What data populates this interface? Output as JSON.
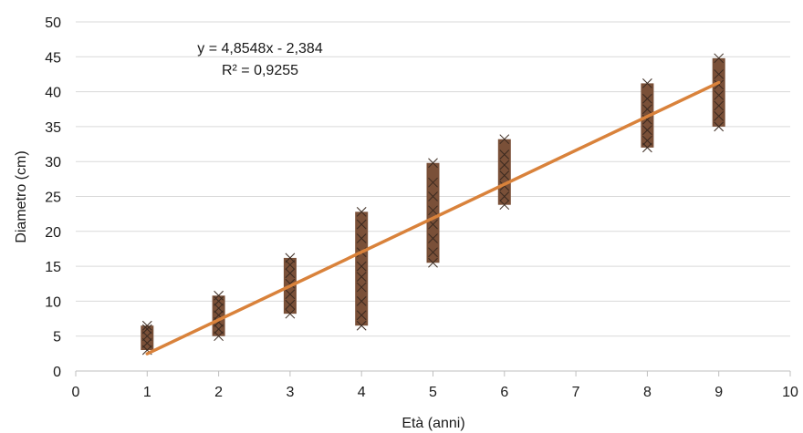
{
  "chart_data": {
    "type": "scatter",
    "title": "",
    "xlabel": "Età (anni)",
    "ylabel": "Diametro (cm)",
    "xlim": [
      0,
      10
    ],
    "ylim": [
      0,
      50
    ],
    "x_ticks": [
      "0",
      "1",
      "2",
      "3",
      "4",
      "5",
      "6",
      "7",
      "8",
      "9",
      "10"
    ],
    "y_ticks": [
      "0",
      "5",
      "10",
      "15",
      "20",
      "25",
      "30",
      "35",
      "40",
      "45",
      "50"
    ],
    "grid": "horizontal",
    "legend": "none",
    "series": [
      {
        "color": "#7a5038",
        "marker": "x",
        "points": [
          {
            "x": 1,
            "y": 3
          },
          {
            "x": 1,
            "y": 4
          },
          {
            "x": 1,
            "y": 5
          },
          {
            "x": 1,
            "y": 6
          },
          {
            "x": 1,
            "y": 6.5
          },
          {
            "x": 2,
            "y": 5
          },
          {
            "x": 2,
            "y": 6
          },
          {
            "x": 2,
            "y": 7
          },
          {
            "x": 2,
            "y": 8
          },
          {
            "x": 2,
            "y": 9
          },
          {
            "x": 2,
            "y": 10
          },
          {
            "x": 2,
            "y": 10.8
          },
          {
            "x": 3,
            "y": 8.2
          },
          {
            "x": 3,
            "y": 9.5
          },
          {
            "x": 3,
            "y": 11
          },
          {
            "x": 3,
            "y": 12.5
          },
          {
            "x": 3,
            "y": 14
          },
          {
            "x": 3,
            "y": 15.2
          },
          {
            "x": 3,
            "y": 16.2
          },
          {
            "x": 4,
            "y": 6.5
          },
          {
            "x": 4,
            "y": 8
          },
          {
            "x": 4,
            "y": 10
          },
          {
            "x": 4,
            "y": 12
          },
          {
            "x": 4,
            "y": 13.5
          },
          {
            "x": 4,
            "y": 15
          },
          {
            "x": 4,
            "y": 17
          },
          {
            "x": 4,
            "y": 19
          },
          {
            "x": 4,
            "y": 21
          },
          {
            "x": 4,
            "y": 22.8
          },
          {
            "x": 5,
            "y": 15.5
          },
          {
            "x": 5,
            "y": 17
          },
          {
            "x": 5,
            "y": 19
          },
          {
            "x": 5,
            "y": 21
          },
          {
            "x": 5,
            "y": 23
          },
          {
            "x": 5,
            "y": 25
          },
          {
            "x": 5,
            "y": 27
          },
          {
            "x": 5,
            "y": 29.8
          },
          {
            "x": 6,
            "y": 23.8
          },
          {
            "x": 6,
            "y": 25
          },
          {
            "x": 6,
            "y": 26.5
          },
          {
            "x": 6,
            "y": 28
          },
          {
            "x": 6,
            "y": 29.5
          },
          {
            "x": 6,
            "y": 31
          },
          {
            "x": 6,
            "y": 33.2
          },
          {
            "x": 8,
            "y": 32
          },
          {
            "x": 8,
            "y": 33
          },
          {
            "x": 8,
            "y": 34.5
          },
          {
            "x": 8,
            "y": 36
          },
          {
            "x": 8,
            "y": 37.5
          },
          {
            "x": 8,
            "y": 39
          },
          {
            "x": 8,
            "y": 41.2
          },
          {
            "x": 9,
            "y": 35
          },
          {
            "x": 9,
            "y": 36.5
          },
          {
            "x": 9,
            "y": 38
          },
          {
            "x": 9,
            "y": 39.5
          },
          {
            "x": 9,
            "y": 41
          },
          {
            "x": 9,
            "y": 42.5
          },
          {
            "x": 9,
            "y": 44.8
          }
        ]
      }
    ],
    "trendline": {
      "type": "linear",
      "slope": 4.8548,
      "intercept": -2.384,
      "x_range": [
        1,
        9
      ],
      "color": "#d9823b",
      "equation_text": "y = 4,8548x - 2,384",
      "r2_text": "R² = 0,9255"
    },
    "gridline_color": "#d9d9d9",
    "axis_color": "#bfbfbf"
  }
}
